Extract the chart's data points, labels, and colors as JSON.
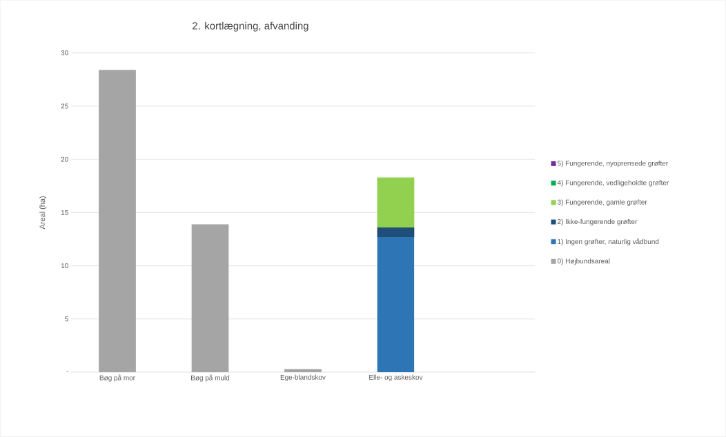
{
  "chart_data": {
    "type": "bar",
    "stacked": true,
    "title": "2. kortlægning, afvanding",
    "ylabel": "Areal (ha)",
    "categories": [
      "Bøg på mor",
      "Bøg på muld",
      "Ege-blandskov",
      "Elle- og askeskov",
      null
    ],
    "series": [
      {
        "name": "0) Højbundsareal",
        "color": "#a5a5a5",
        "values": [
          28.4,
          13.9,
          0.3,
          null,
          null
        ]
      },
      {
        "name": "1) Ingen grøfter, naturlig vådbund",
        "color": "#2e75b6",
        "values": [
          null,
          null,
          null,
          12.7,
          null
        ]
      },
      {
        "name": "2) Ikke-fungerende grøfter",
        "color": "#1f4e79",
        "values": [
          null,
          null,
          null,
          0.9,
          null
        ]
      },
      {
        "name": "3) Fungerende, gamle grøfter",
        "color": "#92d050",
        "values": [
          null,
          null,
          null,
          4.7,
          null
        ]
      },
      {
        "name": "4) Fungerende, vedligeholdte grøfter",
        "color": "#00b050",
        "values": [
          null,
          null,
          null,
          null,
          null
        ]
      },
      {
        "name": "5) Fungerende, nyoprensede grøfter",
        "color": "#7030a0",
        "values": [
          null,
          null,
          null,
          null,
          null
        ]
      }
    ],
    "ylim": [
      0,
      30
    ],
    "yticks": [
      {
        "value": 0,
        "label": "-"
      },
      5,
      10,
      15,
      20,
      25,
      30
    ],
    "grid": "y",
    "legend": "right"
  }
}
